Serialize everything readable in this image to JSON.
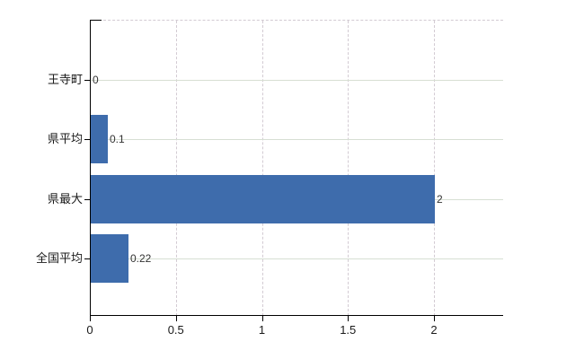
{
  "chart_data": {
    "type": "bar",
    "orientation": "horizontal",
    "title": "",
    "xlabel": "",
    "ylabel": "",
    "categories": [
      "王寺町",
      "県平均",
      "県最大",
      "全国平均"
    ],
    "values": [
      0,
      0.1,
      2,
      0.22
    ],
    "value_labels": [
      "0",
      "0.1",
      "2",
      "0.22"
    ],
    "x_tick_values": [
      0,
      0.5,
      1,
      1.5,
      2
    ],
    "x_tick_labels": [
      "0",
      "0.5",
      "1",
      "1.5",
      "2"
    ],
    "xlim": [
      0,
      2.4
    ],
    "grid": true,
    "legend": false,
    "colors": {
      "bar": "#3e6cac",
      "h_grid": "#d7dfd3",
      "v_grid": "#d3cbd3",
      "axis": "#000000",
      "category_text": "#1a1a1a",
      "value_text": "#333333"
    }
  }
}
